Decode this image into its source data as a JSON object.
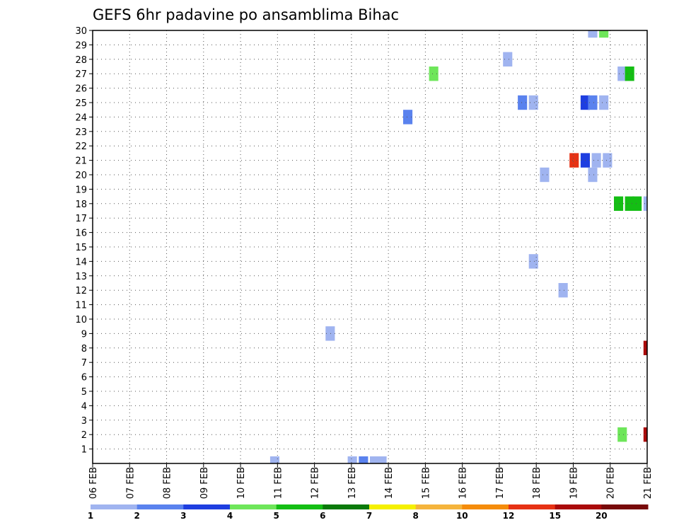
{
  "chart_data": {
    "type": "heatmap",
    "title": "GEFS 6hr padavine po ansamblima Bihac",
    "xlabel": "",
    "ylabel": "",
    "x_ticks": [
      "06 FEB",
      "07 FEB",
      "08 FEB",
      "09 FEB",
      "10 FEB",
      "11 FEB",
      "12 FEB",
      "13 FEB",
      "14 FEB",
      "15 FEB",
      "16 FEB",
      "17 FEB",
      "18 FEB",
      "19 FEB",
      "20 FEB",
      "21 FEB"
    ],
    "y_ticks": [
      "1",
      "2",
      "3",
      "4",
      "5",
      "6",
      "7",
      "8",
      "9",
      "10",
      "11",
      "12",
      "13",
      "14",
      "15",
      "16",
      "17",
      "18",
      "19",
      "20",
      "21",
      "22",
      "23",
      "24",
      "25",
      "26",
      "27",
      "28",
      "29",
      "30"
    ],
    "xlim": [
      "06 FEB",
      "21 FEB"
    ],
    "ylim": [
      0,
      30
    ],
    "x_unit": "days from 06 FEB",
    "grid": true,
    "legend": {
      "placement": "bottom",
      "bounds": [
        "1",
        "2",
        "3",
        "4",
        "5",
        "6",
        "7",
        "8",
        "10",
        "12",
        "15",
        "20"
      ],
      "colors": [
        "#a0b4f0",
        "#5a82ee",
        "#1e3ee0",
        "#6ee65a",
        "#14be14",
        "#0a7a0a",
        "#f5f000",
        "#f5b43c",
        "#f58c0a",
        "#e63214",
        "#aa0a0a",
        "#780a0a"
      ]
    },
    "cells": [
      {
        "day": 4.8,
        "member": 0,
        "class": 0
      },
      {
        "day": 6.9,
        "member": 0,
        "class": 0
      },
      {
        "day": 7.2,
        "member": 0,
        "class": 1
      },
      {
        "day": 7.5,
        "member": 0,
        "class": 0
      },
      {
        "day": 7.7,
        "member": 0,
        "class": 0
      },
      {
        "day": 6.3,
        "member": 9,
        "class": 0
      },
      {
        "day": 8.4,
        "member": 24,
        "class": 1
      },
      {
        "day": 9.1,
        "member": 27,
        "class": 3
      },
      {
        "day": 11.1,
        "member": 28,
        "class": 0
      },
      {
        "day": 11.5,
        "member": 25,
        "class": 1
      },
      {
        "day": 11.8,
        "member": 25,
        "class": 0
      },
      {
        "day": 11.8,
        "member": 14,
        "class": 0
      },
      {
        "day": 12.1,
        "member": 20,
        "class": 0
      },
      {
        "day": 12.6,
        "member": 12,
        "class": 0
      },
      {
        "day": 12.9,
        "member": 21,
        "class": 9
      },
      {
        "day": 13.2,
        "member": 21,
        "class": 2
      },
      {
        "day": 13.5,
        "member": 21,
        "class": 0
      },
      {
        "day": 13.8,
        "member": 21,
        "class": 0
      },
      {
        "day": 13.4,
        "member": 20,
        "class": 0
      },
      {
        "day": 13.2,
        "member": 25,
        "class": 2
      },
      {
        "day": 13.4,
        "member": 25,
        "class": 1
      },
      {
        "day": 13.7,
        "member": 25,
        "class": 0
      },
      {
        "day": 13.4,
        "member": 30,
        "class": 0
      },
      {
        "day": 13.7,
        "member": 30,
        "class": 3
      },
      {
        "day": 14.2,
        "member": 27,
        "class": 0
      },
      {
        "day": 14.4,
        "member": 27,
        "class": 4
      },
      {
        "day": 14.1,
        "member": 18,
        "class": 4
      },
      {
        "day": 14.4,
        "member": 18,
        "class": 4
      },
      {
        "day": 14.6,
        "member": 18,
        "class": 4
      },
      {
        "day": 14.9,
        "member": 18,
        "class": 0
      },
      {
        "day": 14.2,
        "member": 2,
        "class": 3
      },
      {
        "day": 14.9,
        "member": 2,
        "class": 10
      },
      {
        "day": 14.9,
        "member": 8,
        "class": 10
      }
    ]
  }
}
